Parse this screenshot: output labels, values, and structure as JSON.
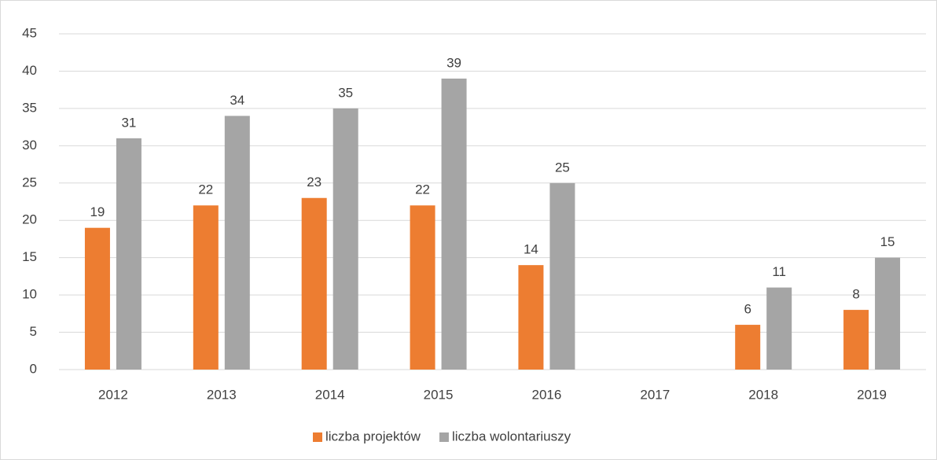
{
  "chart_data": {
    "type": "bar",
    "categories": [
      "2012",
      "2013",
      "2014",
      "2015",
      "2016",
      "2017",
      "2018",
      "2019"
    ],
    "series": [
      {
        "name": "liczba projektów",
        "color": "#ed7d31",
        "values": [
          19,
          22,
          23,
          22,
          14,
          null,
          6,
          8
        ]
      },
      {
        "name": "liczba wolontariuszy",
        "color": "#a5a5a5",
        "values": [
          31,
          34,
          35,
          39,
          25,
          null,
          11,
          15
        ]
      }
    ],
    "ylim": [
      0,
      45
    ],
    "yticks": [
      0,
      5,
      10,
      15,
      20,
      25,
      30,
      35,
      40,
      45
    ],
    "grid": true,
    "legend": "bottom"
  }
}
